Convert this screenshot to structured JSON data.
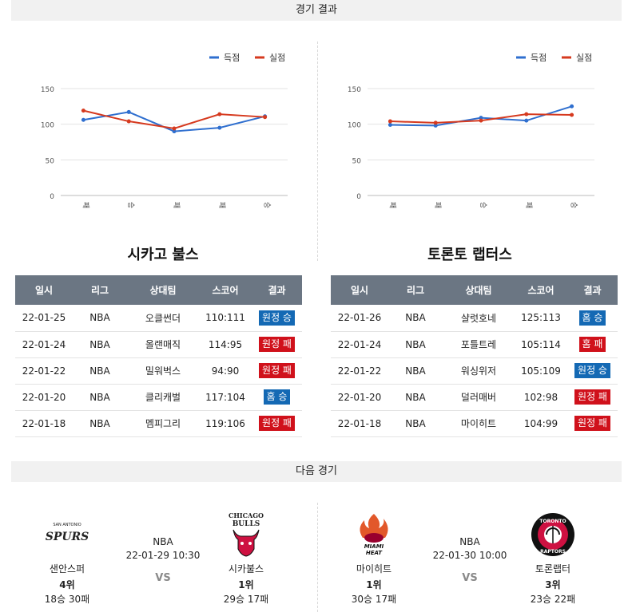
{
  "sections": {
    "results_title": "경기 결과",
    "next_title": "다음 경기"
  },
  "legend": {
    "scored": "득점",
    "conceded": "실점",
    "scored_color": "#2f6fcf",
    "conceded_color": "#d63a1f"
  },
  "chart_data": [
    {
      "type": "line",
      "categories": [
        "패",
        "승",
        "패",
        "패",
        "승"
      ],
      "series": [
        {
          "name": "득점",
          "values": [
            106,
            117,
            90,
            95,
            111
          ]
        },
        {
          "name": "실점",
          "values": [
            119,
            104,
            94,
            114,
            110
          ]
        }
      ],
      "yticks": [
        0,
        50,
        100,
        150
      ],
      "ylim": [
        0,
        160
      ],
      "grid": true,
      "legend_position": "top-right"
    },
    {
      "type": "line",
      "categories": [
        "패",
        "패",
        "승",
        "패",
        "승"
      ],
      "series": [
        {
          "name": "득점",
          "values": [
            99,
            98,
            109,
            105,
            125
          ]
        },
        {
          "name": "실점",
          "values": [
            104,
            102,
            105,
            114,
            113
          ]
        }
      ],
      "yticks": [
        0,
        50,
        100,
        150
      ],
      "ylim": [
        0,
        160
      ],
      "grid": true,
      "legend_position": "top-right"
    }
  ],
  "teams": {
    "left": {
      "title": "시카고 불스",
      "headers": [
        "일시",
        "리그",
        "상대팀",
        "스코어",
        "결과"
      ],
      "rows": [
        {
          "date": "22-01-25",
          "league": "NBA",
          "opponent": "오클썬더",
          "score": "110:111",
          "result": "원정 승",
          "win": true
        },
        {
          "date": "22-01-24",
          "league": "NBA",
          "opponent": "올랜매직",
          "score": "114:95",
          "result": "원정 패",
          "win": false
        },
        {
          "date": "22-01-22",
          "league": "NBA",
          "opponent": "밀워벅스",
          "score": "94:90",
          "result": "원정 패",
          "win": false
        },
        {
          "date": "22-01-20",
          "league": "NBA",
          "opponent": "클리캐벌",
          "score": "117:104",
          "result": "홈 승",
          "win": true
        },
        {
          "date": "22-01-18",
          "league": "NBA",
          "opponent": "멤피그리",
          "score": "119:106",
          "result": "원정 패",
          "win": false
        }
      ]
    },
    "right": {
      "title": "토론토 랩터스",
      "headers": [
        "일시",
        "리그",
        "상대팀",
        "스코어",
        "결과"
      ],
      "rows": [
        {
          "date": "22-01-26",
          "league": "NBA",
          "opponent": "샬럿호네",
          "score": "125:113",
          "result": "홈 승",
          "win": true
        },
        {
          "date": "22-01-24",
          "league": "NBA",
          "opponent": "포틀트레",
          "score": "105:114",
          "result": "홈 패",
          "win": false
        },
        {
          "date": "22-01-22",
          "league": "NBA",
          "opponent": "워싱위저",
          "score": "105:109",
          "result": "원정 승",
          "win": true
        },
        {
          "date": "22-01-20",
          "league": "NBA",
          "opponent": "덜러매버",
          "score": "102:98",
          "result": "원정 패",
          "win": false
        },
        {
          "date": "22-01-18",
          "league": "NBA",
          "opponent": "마이히트",
          "score": "104:99",
          "result": "원정 패",
          "win": false
        }
      ]
    }
  },
  "next_games": {
    "left": {
      "league": "NBA",
      "time": "22-01-29 10:30",
      "vs": "VS",
      "home": {
        "name": "샌안스퍼",
        "rank": "4위",
        "record": "18승 30패",
        "logo_text_top": "SAN ANTONIO",
        "logo_text_main": "SPURS"
      },
      "away": {
        "name": "시카불스",
        "rank": "1위",
        "record": "29승 17패",
        "logo_text_top": "CHICAGO",
        "logo_text_main": "BULLS"
      }
    },
    "right": {
      "league": "NBA",
      "time": "22-01-30 10:00",
      "vs": "VS",
      "home": {
        "name": "마이히트",
        "rank": "1위",
        "record": "30승 17패",
        "logo_text_top": "MIAMI",
        "logo_text_main": "HEAT"
      },
      "away": {
        "name": "토론랩터",
        "rank": "3위",
        "record": "23승 22패",
        "logo_text_top": "TORONTO",
        "logo_text_main": "RAPTORS"
      }
    }
  }
}
